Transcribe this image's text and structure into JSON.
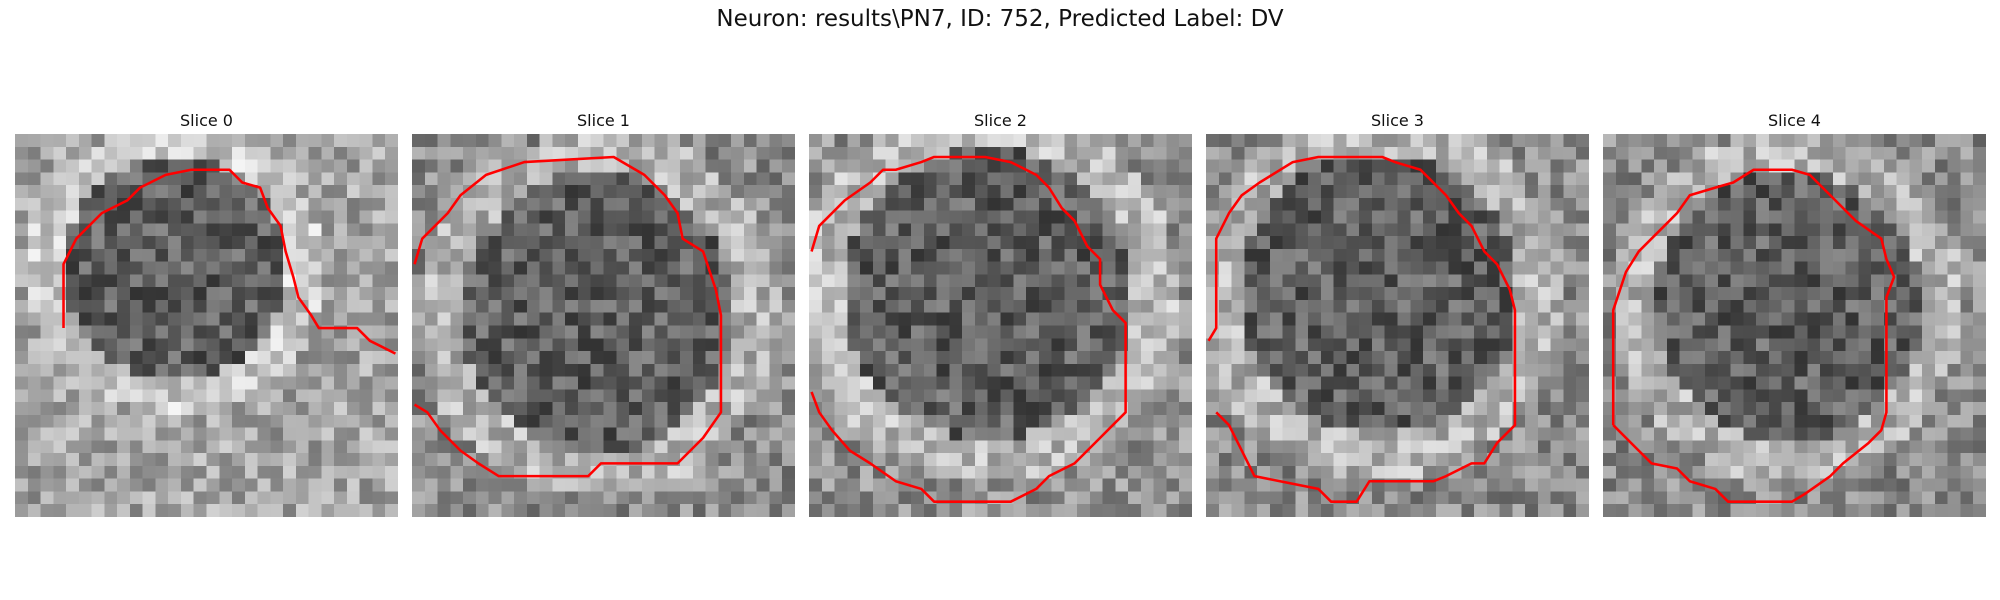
{
  "figure": {
    "title": "Neuron: results\\PN7, ID: 752, Predicted Label: DV"
  },
  "panels": [
    {
      "title": "Slice 0"
    },
    {
      "title": "Slice 1"
    },
    {
      "title": "Slice 2"
    },
    {
      "title": "Slice 3"
    },
    {
      "title": "Slice 4"
    }
  ],
  "colors": {
    "contour": "#ff0000"
  }
}
